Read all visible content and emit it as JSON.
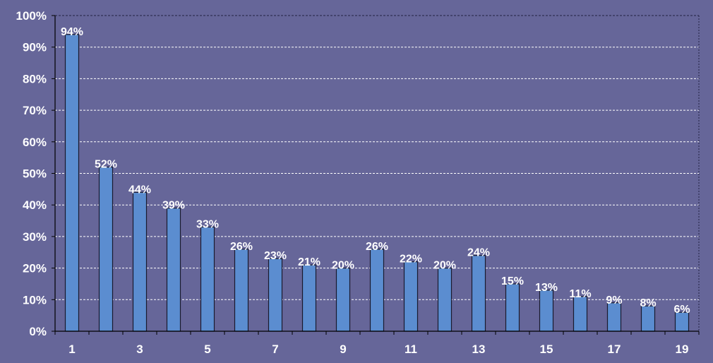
{
  "chart_data": {
    "type": "bar",
    "categories": [
      "1",
      "2",
      "3",
      "4",
      "5",
      "6",
      "7",
      "8",
      "9",
      "10",
      "11",
      "12",
      "13",
      "14",
      "15",
      "16",
      "17",
      "18",
      "19"
    ],
    "values": [
      94,
      52,
      44,
      39,
      33,
      26,
      23,
      21,
      20,
      26,
      22,
      20,
      24,
      15,
      13,
      11,
      9,
      8,
      6
    ],
    "data_labels": [
      "94%",
      "52%",
      "44%",
      "39%",
      "33%",
      "26%",
      "23%",
      "21%",
      "20%",
      "26%",
      "22%",
      "20%",
      "24%",
      "15%",
      "13%",
      "11%",
      "9%",
      "8%",
      "6%"
    ],
    "x_tick_labels": [
      "1",
      "",
      "3",
      "",
      "5",
      "",
      "7",
      "",
      "9",
      "",
      "11",
      "",
      "13",
      "",
      "15",
      "",
      "17",
      "",
      "19"
    ],
    "y_tick_labels": [
      "0%",
      "10%",
      "20%",
      "30%",
      "40%",
      "50%",
      "60%",
      "70%",
      "80%",
      "90%",
      "100%"
    ],
    "ylim": [
      0,
      100
    ],
    "title": "",
    "xlabel": "",
    "ylabel": "",
    "grid": "horizontal dashed",
    "legend": "none",
    "colors": {
      "background": "#666699",
      "bar_fill": "#5B8DD0",
      "bar_stroke": "#1A1A2E",
      "grid": "#FFFFFF",
      "text": "#FFFFFF",
      "axis": "#000000"
    }
  }
}
